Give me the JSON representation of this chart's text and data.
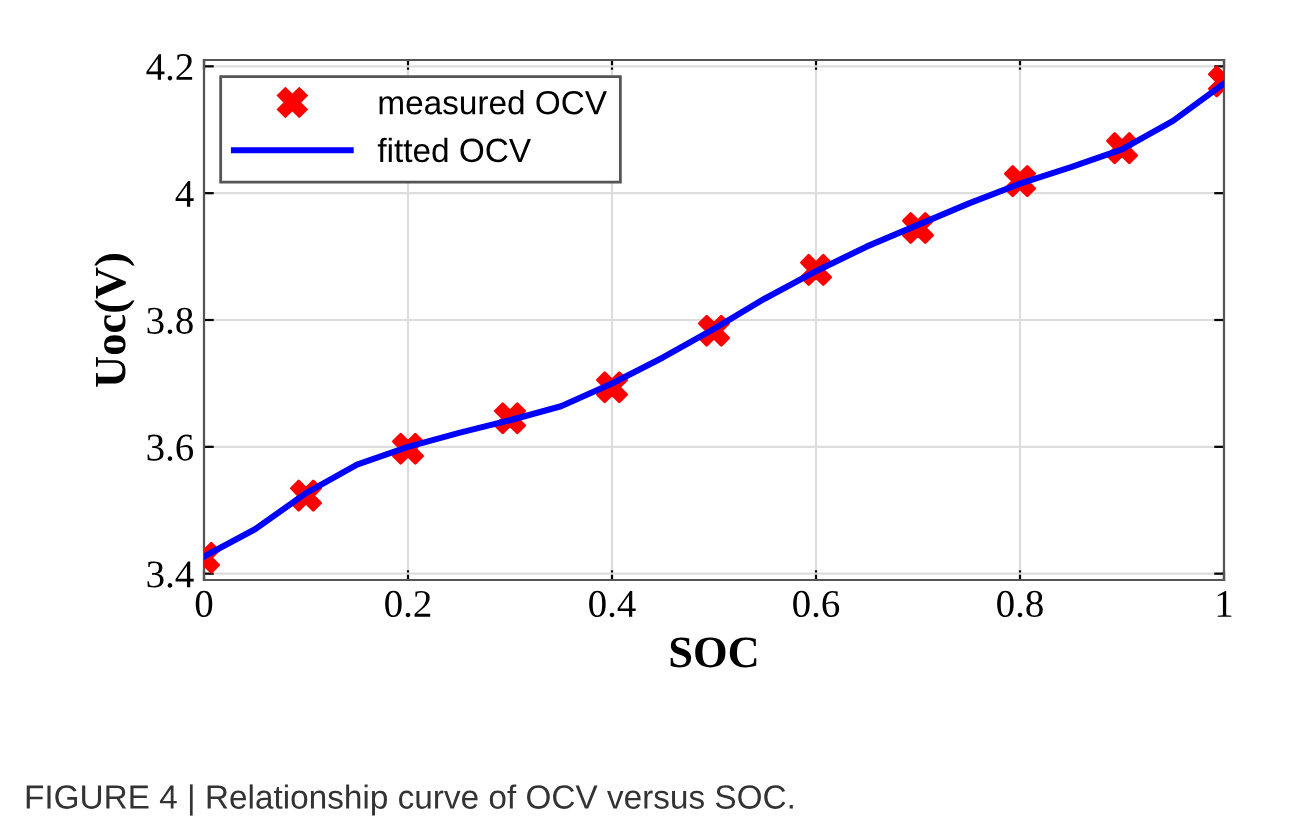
{
  "chart_data": {
    "type": "line",
    "xlabel": "SOC",
    "ylabel": "Uoc(V)",
    "xlim": [
      0,
      1
    ],
    "xticks": [
      0,
      0.2,
      0.4,
      0.6,
      0.8,
      1
    ],
    "ylim": [
      3.39,
      4.21
    ],
    "yticks": [
      3.4,
      3.6,
      3.8,
      4,
      4.2
    ],
    "grid": true,
    "legend": "top left",
    "annotations": [
      "FIGURE 4 | Relationship curve of OCV versus SOC."
    ],
    "series": [
      {
        "name": "measured OCV",
        "type": "scatter",
        "marker": "cross",
        "color": "#ff0000",
        "x": [
          0,
          0.1,
          0.2,
          0.3,
          0.4,
          0.5,
          0.6,
          0.7,
          0.8,
          0.9,
          1
        ],
        "values": [
          3.425,
          3.523,
          3.597,
          3.645,
          3.694,
          3.783,
          3.879,
          3.945,
          4.019,
          4.071,
          4.176
        ]
      },
      {
        "name": "fitted OCV",
        "line_style": "solid",
        "color": "#0000ff",
        "x": [
          0,
          0.05,
          0.1,
          0.15,
          0.2,
          0.25,
          0.3,
          0.35,
          0.4,
          0.45,
          0.5,
          0.55,
          0.6,
          0.65,
          0.7,
          0.75,
          0.8,
          0.85,
          0.9,
          0.95,
          1
        ],
        "values": [
          3.427,
          3.47,
          3.527,
          3.572,
          3.6,
          3.622,
          3.642,
          3.664,
          3.7,
          3.741,
          3.786,
          3.834,
          3.877,
          3.916,
          3.95,
          3.984,
          4.015,
          4.041,
          4.069,
          4.114,
          4.173
        ]
      }
    ]
  }
}
